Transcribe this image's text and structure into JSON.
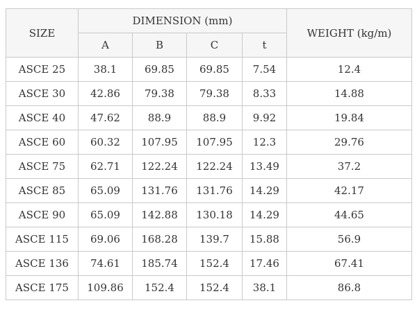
{
  "headers": {
    "size": "SIZE",
    "dimension_group": "DIMENSION (mm)",
    "weight": "WEIGHT (kg/m)",
    "dimension_columns": [
      "A",
      "B",
      "C",
      "t"
    ]
  },
  "rows": [
    {
      "size": "ASCE 25",
      "a": "38.1",
      "b": "69.85",
      "c": "69.85",
      "t": "7.54",
      "weight": "12.4"
    },
    {
      "size": "ASCE 30",
      "a": "42.86",
      "b": "79.38",
      "c": "79.38",
      "t": "8.33",
      "weight": "14.88"
    },
    {
      "size": "ASCE 40",
      "a": "47.62",
      "b": "88.9",
      "c": "88.9",
      "t": "9.92",
      "weight": "19.84"
    },
    {
      "size": "ASCE 60",
      "a": "60.32",
      "b": "107.95",
      "c": "107.95",
      "t": "12.3",
      "weight": "29.76"
    },
    {
      "size": "ASCE 75",
      "a": "62.71",
      "b": "122.24",
      "c": "122.24",
      "t": "13.49",
      "weight": "37.2"
    },
    {
      "size": "ASCE 85",
      "a": "65.09",
      "b": "131.76",
      "c": "131.76",
      "t": "14.29",
      "weight": "42.17"
    },
    {
      "size": "ASCE 90",
      "a": "65.09",
      "b": "142.88",
      "c": "130.18",
      "t": "14.29",
      "weight": "44.65"
    },
    {
      "size": "ASCE 115",
      "a": "69.06",
      "b": "168.28",
      "c": "139.7",
      "t": "15.88",
      "weight": "56.9"
    },
    {
      "size": "ASCE 136",
      "a": "74.61",
      "b": "185.74",
      "c": "152.4",
      "t": "17.46",
      "weight": "67.41"
    },
    {
      "size": "ASCE 175",
      "a": "109.86",
      "b": "152.4",
      "c": "152.4",
      "t": "38.1",
      "weight": "86.8"
    }
  ]
}
